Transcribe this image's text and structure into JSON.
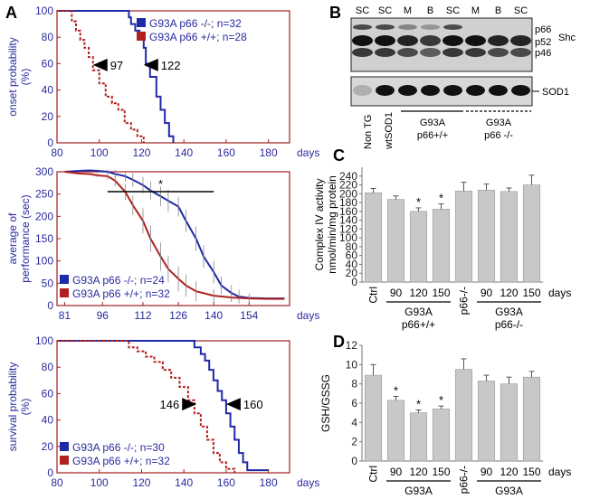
{
  "colors": {
    "panel_frame": "#a02020",
    "axis_text": "#2a2aa0",
    "blue_series": "#1f2aa8",
    "red_series": "#b02020",
    "bar_fill": "#c8c8c8",
    "blot_bg": "#d8d8d8",
    "band": "#111111"
  },
  "panel_labels": {
    "a": "A",
    "b": "B",
    "c": "C",
    "d": "D"
  },
  "chart_data": [
    {
      "id": "A1",
      "type": "line",
      "step": true,
      "ylabel": "onset probability (%)",
      "xunit": "days",
      "xlim": [
        80,
        190
      ],
      "ylim": [
        0,
        100
      ],
      "xticks": [
        80,
        100,
        120,
        140,
        160,
        180
      ],
      "yticks": [
        0,
        20,
        40,
        60,
        80,
        100
      ],
      "legend": "top-right",
      "series": [
        {
          "name": "G93A p66 -/-; n=32",
          "color": "#1f2aa8",
          "dash": false,
          "x": [
            80,
            111,
            114,
            115,
            117,
            119,
            121,
            122,
            124,
            127,
            129,
            131,
            133,
            135
          ],
          "y": [
            100,
            100,
            95,
            90,
            85,
            80,
            72,
            60,
            50,
            35,
            25,
            15,
            5,
            0
          ]
        },
        {
          "name": "G93A p66 +/+; n=28",
          "color": "#b02020",
          "dash": true,
          "x": [
            80,
            85,
            87,
            89,
            91,
            93,
            95,
            97,
            100,
            103,
            106,
            109,
            112,
            115,
            118,
            121
          ],
          "y": [
            100,
            100,
            92,
            85,
            78,
            72,
            65,
            55,
            45,
            35,
            30,
            25,
            15,
            10,
            5,
            0
          ]
        }
      ],
      "annotations": [
        {
          "text": "97",
          "x": 97,
          "y": 59,
          "arrow": "left"
        },
        {
          "text": "122",
          "x": 121,
          "y": 59,
          "arrow": "left"
        }
      ]
    },
    {
      "id": "A2",
      "type": "line",
      "ylabel": "average of performance (sec)",
      "xunit": "days",
      "xlim": [
        78,
        170
      ],
      "ylim": [
        0,
        300
      ],
      "xticks": [
        81,
        96,
        112,
        126,
        140,
        154
      ],
      "yticks": [
        0,
        50,
        100,
        150,
        200,
        250,
        300
      ],
      "legend": "bottom-left",
      "significance": {
        "text": "*",
        "x_start": 98,
        "x_end": 140
      },
      "series": [
        {
          "name": "G93A p66 -/-; n=24",
          "color": "#1f2aa8",
          "x": [
            81,
            84,
            87,
            91,
            94,
            98,
            101,
            105,
            108,
            112,
            115,
            119,
            122,
            126,
            129,
            133,
            136,
            140,
            143,
            147,
            150,
            154,
            161,
            168
          ],
          "y": [
            300,
            301,
            302,
            303,
            302,
            300,
            295,
            290,
            282,
            270,
            258,
            245,
            235,
            222,
            190,
            150,
            110,
            75,
            45,
            28,
            20,
            17,
            16,
            16
          ],
          "err": [
            0,
            0,
            0,
            0,
            0,
            5,
            10,
            12,
            15,
            18,
            20,
            22,
            25,
            22,
            25,
            28,
            25,
            25,
            20,
            18,
            15,
            10,
            0,
            0
          ]
        },
        {
          "name": "G93A p66 +/+; n=32",
          "color": "#b02020",
          "x": [
            81,
            84,
            87,
            91,
            94,
            98,
            101,
            105,
            108,
            112,
            115,
            119,
            122,
            126,
            129,
            133,
            140,
            147,
            154,
            161,
            168
          ],
          "y": [
            300,
            298,
            296,
            295,
            292,
            290,
            280,
            255,
            225,
            190,
            150,
            110,
            82,
            60,
            45,
            32,
            22,
            18,
            16,
            15,
            15
          ],
          "err": [
            0,
            0,
            0,
            0,
            5,
            8,
            12,
            18,
            22,
            28,
            30,
            32,
            30,
            28,
            25,
            22,
            15,
            10,
            5,
            0,
            0
          ]
        }
      ]
    },
    {
      "id": "A3",
      "type": "line",
      "step": true,
      "ylabel": "survival probability (%)",
      "xunit": "days",
      "xlim": [
        80,
        190
      ],
      "ylim": [
        0,
        100
      ],
      "xticks": [
        80,
        100,
        120,
        140,
        160,
        180
      ],
      "yticks": [
        0,
        20,
        40,
        60,
        80,
        100
      ],
      "legend": "bottom-left",
      "series": [
        {
          "name": "G93A p66 -/-; n=30",
          "color": "#1f2aa8",
          "dash": false,
          "x": [
            80,
            142,
            145,
            148,
            150,
            152,
            154,
            156,
            158,
            160,
            162,
            164,
            166,
            168,
            170,
            180
          ],
          "y": [
            100,
            100,
            95,
            90,
            85,
            78,
            70,
            62,
            55,
            45,
            35,
            25,
            15,
            8,
            2,
            2
          ]
        },
        {
          "name": "G93A p66 +/+; n=32",
          "color": "#b02020",
          "dash": true,
          "x": [
            80,
            110,
            114,
            118,
            122,
            126,
            130,
            134,
            138,
            142,
            145,
            148,
            151,
            154,
            157,
            160,
            164
          ],
          "y": [
            100,
            100,
            95,
            92,
            88,
            84,
            78,
            72,
            65,
            55,
            45,
            35,
            25,
            15,
            8,
            3,
            0
          ]
        }
      ],
      "annotations": [
        {
          "text": "146",
          "x": 146,
          "y": 52,
          "arrow": "right"
        },
        {
          "text": "160",
          "x": 160,
          "y": 52,
          "arrow": "left"
        }
      ]
    },
    {
      "id": "C",
      "type": "bar",
      "ylabel": "Complex IV activity nmol/min/mg protein",
      "ylim": [
        0,
        260
      ],
      "yticks": [
        0,
        20,
        40,
        60,
        80,
        100,
        120,
        140,
        160,
        180,
        200,
        220,
        240
      ],
      "categories": [
        "Ctrl",
        "90",
        "120",
        "150",
        "p66-/-",
        "90",
        "120",
        "150"
      ],
      "values": [
        202,
        187,
        160,
        165,
        206,
        208,
        205,
        220
      ],
      "errors": [
        10,
        8,
        8,
        12,
        20,
        14,
        8,
        22
      ],
      "significant": [
        false,
        false,
        true,
        true,
        false,
        false,
        false,
        false
      ],
      "xunit": "days",
      "groups": [
        {
          "label": "G93A p66+/+",
          "from": 1,
          "to": 3
        },
        {
          "label": "G93A p66-/-",
          "from": 5,
          "to": 7
        }
      ]
    },
    {
      "id": "D",
      "type": "bar",
      "ylabel": "GSH/GSSG",
      "ylim": [
        0,
        12
      ],
      "yticks": [
        0,
        2,
        4,
        6,
        8,
        10,
        12
      ],
      "categories": [
        "Ctrl",
        "90",
        "120",
        "150",
        "p66-/-",
        "90",
        "120",
        "150"
      ],
      "values": [
        8.9,
        6.3,
        5.0,
        5.4,
        9.5,
        8.3,
        8.0,
        8.7
      ],
      "errors": [
        1.1,
        0.4,
        0.3,
        0.3,
        1.1,
        0.6,
        0.7,
        0.6
      ],
      "significant": [
        false,
        true,
        true,
        true,
        false,
        false,
        false,
        false
      ],
      "xunit": "days",
      "groups": [
        {
          "label": "G93A p66+/+",
          "from": 1,
          "to": 3
        },
        {
          "label": "G93A p66-/-",
          "from": 5,
          "to": 7
        }
      ]
    }
  ],
  "blot": {
    "lane_headers": [
      "SC",
      "SC",
      "M",
      "B",
      "SC",
      "M",
      "B",
      "SC"
    ],
    "shc_bands": [
      "p66",
      "p52",
      "p46"
    ],
    "shc_label": "Shc",
    "sod_label": "SOD1",
    "sample_labels": [
      "Non TG",
      "wtSOD1"
    ],
    "group_labels": [
      {
        "line1": "G93A",
        "line2": "p66+/+"
      },
      {
        "line1": "G93A",
        "line2": "p66 -/-"
      }
    ]
  }
}
